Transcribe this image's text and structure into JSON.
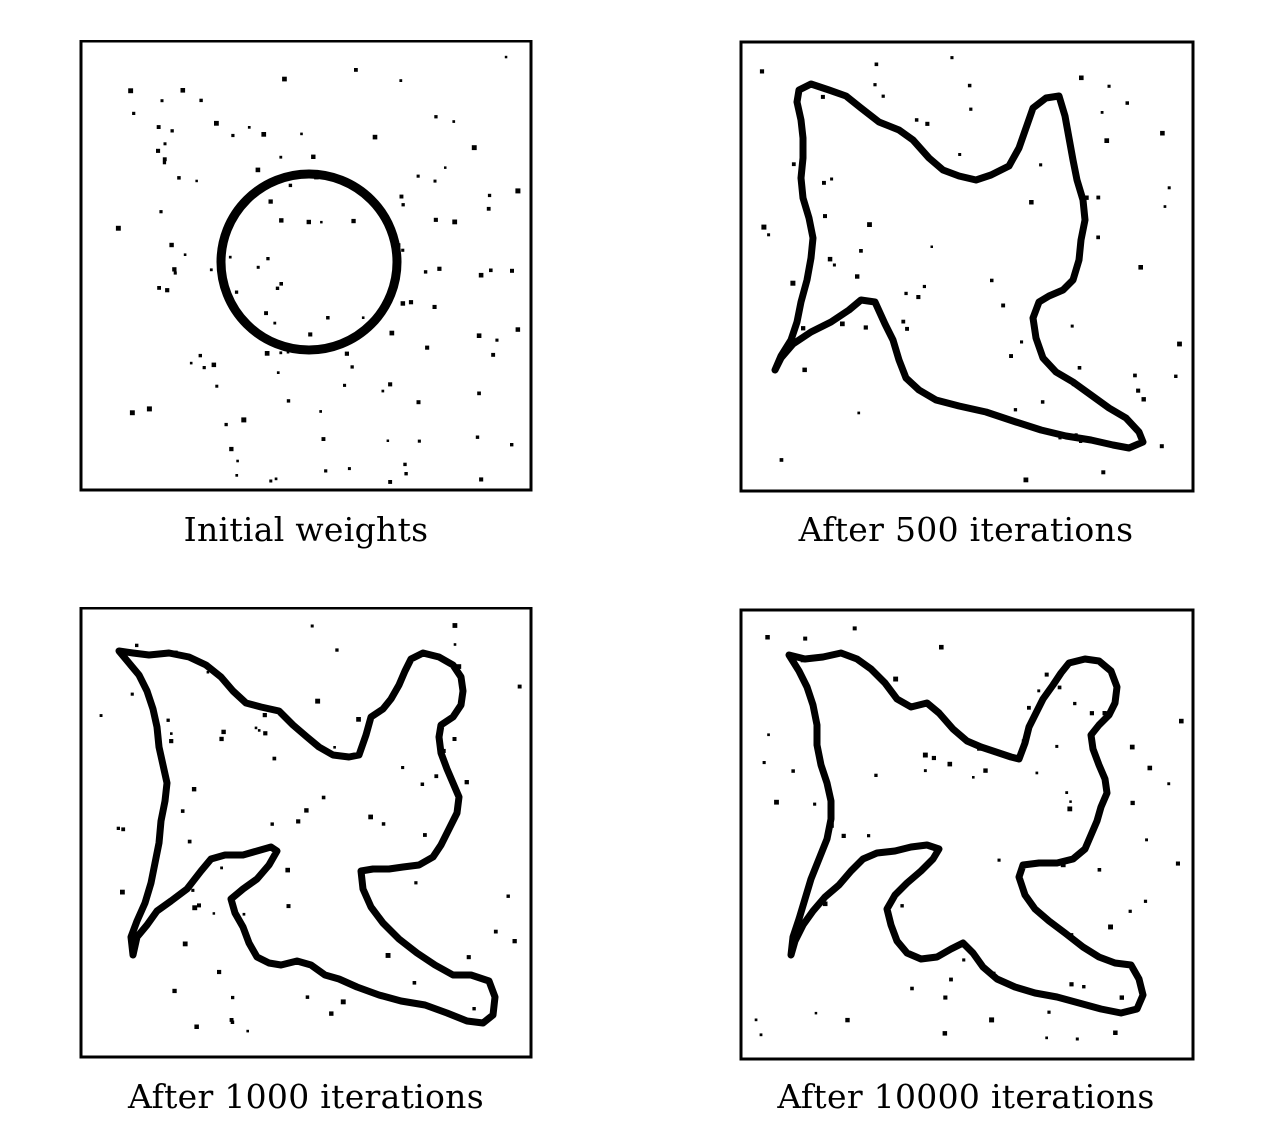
{
  "panels": [
    {
      "caption": "Initial weights"
    },
    {
      "caption": "After 500 iterations"
    },
    {
      "caption": "After 1000 iterations"
    },
    {
      "caption": "After 10000 iterations"
    }
  ],
  "colors": {
    "ink": "#000000",
    "paper": "#ffffff"
  }
}
